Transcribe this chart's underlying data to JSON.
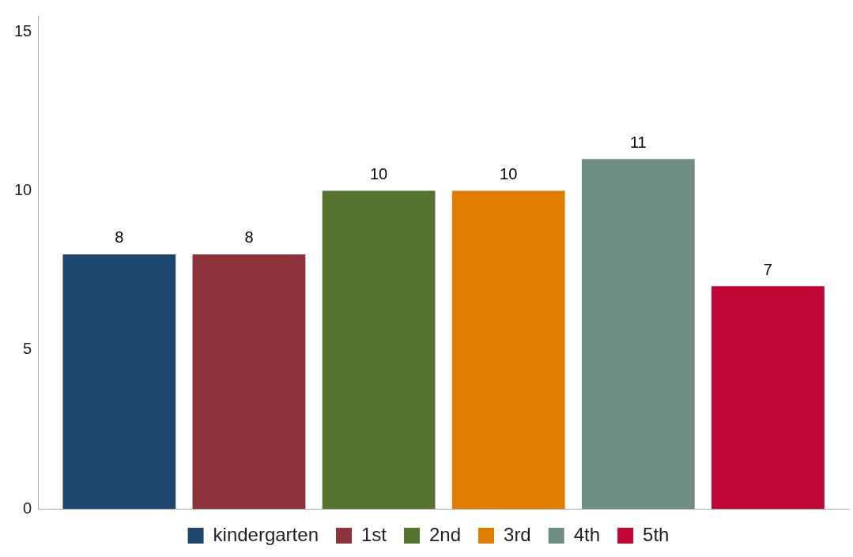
{
  "chart_data": {
    "type": "bar",
    "categories": [
      null
    ],
    "series": [
      {
        "name": "kindergarten",
        "color": "#1c466e",
        "values": [
          8
        ]
      },
      {
        "name": "1st",
        "color": "#8e333b",
        "values": [
          8
        ]
      },
      {
        "name": "2nd",
        "color": "#55752f",
        "values": [
          10
        ]
      },
      {
        "name": "3rd",
        "color": "#e07d00",
        "values": [
          10
        ]
      },
      {
        "name": "4th",
        "color": "#6e8e81",
        "values": [
          11
        ]
      },
      {
        "name": "5th",
        "color": "#c10534",
        "values": [
          7
        ]
      }
    ],
    "ylim": [
      0,
      15.5
    ],
    "yticks": [
      0,
      5,
      10,
      15
    ],
    "grid": false,
    "legend": "bottom",
    "data_labels": true
  }
}
